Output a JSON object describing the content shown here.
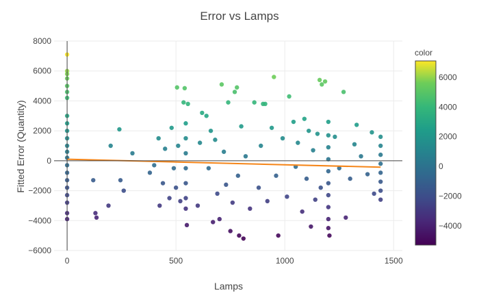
{
  "chart_data": {
    "type": "scatter",
    "title": "Error vs Lamps",
    "xlabel": "Lamps",
    "ylabel": "Fitted Error (Quantity)",
    "xlim": [
      -60,
      1540
    ],
    "ylim": [
      -6000,
      8000
    ],
    "xticks": [
      0,
      500,
      1000,
      1500
    ],
    "yticks": [
      -6000,
      -4000,
      -2000,
      0,
      2000,
      4000,
      6000,
      8000
    ],
    "xtick_labels": [
      "0",
      "500",
      "1000",
      "1500"
    ],
    "ytick_labels": [
      "−6000",
      "−4000",
      "−2000",
      "0",
      "2000",
      "4000",
      "6000",
      "8000"
    ],
    "colorbar": {
      "title": "color",
      "range": [
        -5300,
        7100
      ],
      "ticks": [
        -4000,
        -2000,
        0,
        2000,
        4000,
        6000
      ],
      "tick_labels": [
        "−4000",
        "−2000",
        "0",
        "2000",
        "4000",
        "6000"
      ],
      "colorscale": "Viridis"
    },
    "trend_line": {
      "x": [
        0,
        1440
      ],
      "y": [
        100,
        -430
      ],
      "color": "#f58518"
    },
    "points": [
      {
        "x": 0,
        "y": 7100
      },
      {
        "x": 0,
        "y": 6000
      },
      {
        "x": 0,
        "y": 5800
      },
      {
        "x": 0,
        "y": 5500
      },
      {
        "x": 0,
        "y": 5000
      },
      {
        "x": 0,
        "y": 4600
      },
      {
        "x": 0,
        "y": 4200
      },
      {
        "x": 0,
        "y": 3000
      },
      {
        "x": 0,
        "y": 2500
      },
      {
        "x": 0,
        "y": 2000
      },
      {
        "x": 0,
        "y": 1500
      },
      {
        "x": 0,
        "y": 1000
      },
      {
        "x": 0,
        "y": 600
      },
      {
        "x": 0,
        "y": 200
      },
      {
        "x": 0,
        "y": -300
      },
      {
        "x": 0,
        "y": -800
      },
      {
        "x": 0,
        "y": -1300
      },
      {
        "x": 0,
        "y": -1800
      },
      {
        "x": 0,
        "y": -2300
      },
      {
        "x": 0,
        "y": -2800
      },
      {
        "x": 0,
        "y": -3500
      },
      {
        "x": 0,
        "y": -3900
      },
      {
        "x": 120,
        "y": -1300
      },
      {
        "x": 130,
        "y": -3500
      },
      {
        "x": 135,
        "y": -3800
      },
      {
        "x": 190,
        "y": -3000
      },
      {
        "x": 200,
        "y": 1000
      },
      {
        "x": 240,
        "y": 2100
      },
      {
        "x": 245,
        "y": -1300
      },
      {
        "x": 260,
        "y": -2000
      },
      {
        "x": 300,
        "y": 500
      },
      {
        "x": 380,
        "y": -800
      },
      {
        "x": 400,
        "y": -300
      },
      {
        "x": 420,
        "y": 1500
      },
      {
        "x": 425,
        "y": -3000
      },
      {
        "x": 440,
        "y": -1500
      },
      {
        "x": 450,
        "y": 800
      },
      {
        "x": 470,
        "y": -2500
      },
      {
        "x": 480,
        "y": 2200
      },
      {
        "x": 490,
        "y": -500
      },
      {
        "x": 500,
        "y": -1800
      },
      {
        "x": 505,
        "y": 4900
      },
      {
        "x": 510,
        "y": 1000
      },
      {
        "x": 520,
        "y": -2700
      },
      {
        "x": 535,
        "y": 3900
      },
      {
        "x": 540,
        "y": 4850
      },
      {
        "x": 545,
        "y": 2500
      },
      {
        "x": 545,
        "y": 1500
      },
      {
        "x": 545,
        "y": 500
      },
      {
        "x": 545,
        "y": -500
      },
      {
        "x": 545,
        "y": -1500
      },
      {
        "x": 545,
        "y": -2500
      },
      {
        "x": 545,
        "y": -3200
      },
      {
        "x": 550,
        "y": -4300
      },
      {
        "x": 555,
        "y": 3800
      },
      {
        "x": 600,
        "y": -3000
      },
      {
        "x": 610,
        "y": 1200
      },
      {
        "x": 620,
        "y": 3200
      },
      {
        "x": 640,
        "y": 3000
      },
      {
        "x": 650,
        "y": -500
      },
      {
        "x": 660,
        "y": 2000
      },
      {
        "x": 670,
        "y": -4100
      },
      {
        "x": 680,
        "y": 1400
      },
      {
        "x": 690,
        "y": -2200
      },
      {
        "x": 700,
        "y": -3900
      },
      {
        "x": 710,
        "y": 5100
      },
      {
        "x": 720,
        "y": 600
      },
      {
        "x": 730,
        "y": -1600
      },
      {
        "x": 740,
        "y": 3900
      },
      {
        "x": 750,
        "y": -4700
      },
      {
        "x": 760,
        "y": -2800
      },
      {
        "x": 770,
        "y": 4600
      },
      {
        "x": 780,
        "y": 4900
      },
      {
        "x": 785,
        "y": -1000
      },
      {
        "x": 790,
        "y": -5000
      },
      {
        "x": 800,
        "y": 2300
      },
      {
        "x": 810,
        "y": -5200
      },
      {
        "x": 820,
        "y": 300
      },
      {
        "x": 840,
        "y": -3200
      },
      {
        "x": 860,
        "y": 3900
      },
      {
        "x": 880,
        "y": -1800
      },
      {
        "x": 890,
        "y": 1000
      },
      {
        "x": 900,
        "y": 3800
      },
      {
        "x": 910,
        "y": 3800
      },
      {
        "x": 920,
        "y": -2700
      },
      {
        "x": 940,
        "y": 2200
      },
      {
        "x": 950,
        "y": 5600
      },
      {
        "x": 960,
        "y": -1000
      },
      {
        "x": 970,
        "y": -5000
      },
      {
        "x": 990,
        "y": 1500
      },
      {
        "x": 1010,
        "y": -2400
      },
      {
        "x": 1020,
        "y": 4300
      },
      {
        "x": 1040,
        "y": 2600
      },
      {
        "x": 1050,
        "y": -400
      },
      {
        "x": 1060,
        "y": 1200
      },
      {
        "x": 1080,
        "y": -3400
      },
      {
        "x": 1090,
        "y": 2800
      },
      {
        "x": 1100,
        "y": -1200
      },
      {
        "x": 1110,
        "y": 2000
      },
      {
        "x": 1120,
        "y": -4400
      },
      {
        "x": 1130,
        "y": 700
      },
      {
        "x": 1140,
        "y": -2600
      },
      {
        "x": 1150,
        "y": 1800
      },
      {
        "x": 1160,
        "y": 5400
      },
      {
        "x": 1165,
        "y": -1800
      },
      {
        "x": 1170,
        "y": 5100
      },
      {
        "x": 1185,
        "y": 5300
      },
      {
        "x": 1200,
        "y": 2600
      },
      {
        "x": 1200,
        "y": 1700
      },
      {
        "x": 1200,
        "y": 900
      },
      {
        "x": 1200,
        "y": 100
      },
      {
        "x": 1200,
        "y": -700
      },
      {
        "x": 1200,
        "y": -1500
      },
      {
        "x": 1200,
        "y": -2300
      },
      {
        "x": 1200,
        "y": -3100
      },
      {
        "x": 1200,
        "y": -3900
      },
      {
        "x": 1200,
        "y": -4500
      },
      {
        "x": 1205,
        "y": -5000
      },
      {
        "x": 1230,
        "y": 1600
      },
      {
        "x": 1250,
        "y": -500
      },
      {
        "x": 1270,
        "y": 4600
      },
      {
        "x": 1280,
        "y": -3800
      },
      {
        "x": 1300,
        "y": -1200
      },
      {
        "x": 1320,
        "y": 1100
      },
      {
        "x": 1330,
        "y": 2400
      },
      {
        "x": 1350,
        "y": 300
      },
      {
        "x": 1380,
        "y": -900
      },
      {
        "x": 1400,
        "y": 1900
      },
      {
        "x": 1410,
        "y": -2200
      },
      {
        "x": 1440,
        "y": 1600
      },
      {
        "x": 1440,
        "y": 1000
      },
      {
        "x": 1440,
        "y": 400
      },
      {
        "x": 1440,
        "y": -200
      },
      {
        "x": 1440,
        "y": -800
      },
      {
        "x": 1440,
        "y": -1400
      },
      {
        "x": 1440,
        "y": -2000
      },
      {
        "x": 1440,
        "y": -2600
      }
    ]
  }
}
